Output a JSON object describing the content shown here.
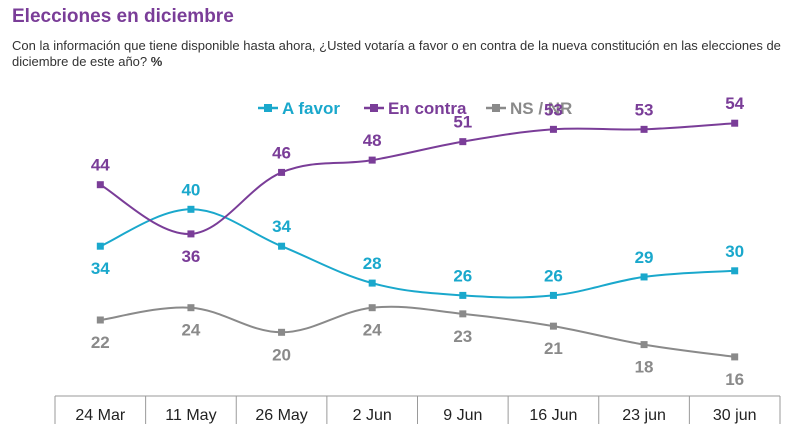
{
  "header": {
    "title": "Elecciones en diciembre",
    "subtitle": "Con la información que tiene disponible hasta ahora, ¿Usted votaría a favor o en contra de la nueva constitución en las elecciones de diciembre de este año?",
    "unit": "%"
  },
  "chart_data": {
    "type": "line",
    "title": "Elecciones en diciembre",
    "categories": [
      "24 Mar",
      "11 May",
      "26 May",
      "2 Jun",
      "9 Jun",
      "16 Jun",
      "23 jun",
      "30 jun"
    ],
    "series": [
      {
        "name": "A favor",
        "color": "#1aa8cc",
        "values": [
          34,
          40,
          34,
          28,
          26,
          26,
          29,
          30
        ],
        "label_pos": [
          "below",
          "above",
          "above",
          "above",
          "above",
          "above",
          "above",
          "above"
        ]
      },
      {
        "name": "En contra",
        "color": "#7a3d98",
        "values": [
          44,
          36,
          46,
          48,
          51,
          53,
          53,
          54
        ],
        "label_pos": [
          "above",
          "below",
          "above",
          "above",
          "above",
          "above",
          "above",
          "above"
        ]
      },
      {
        "name": "NS / NR",
        "color": "#8a8a8a",
        "values": [
          22,
          24,
          20,
          24,
          23,
          21,
          18,
          16
        ],
        "label_pos": [
          "below",
          "below",
          "below",
          "below",
          "below",
          "below",
          "below",
          "below"
        ]
      }
    ],
    "legend_position": "top-center",
    "grid": false,
    "ylim": [
      10,
      60
    ]
  }
}
